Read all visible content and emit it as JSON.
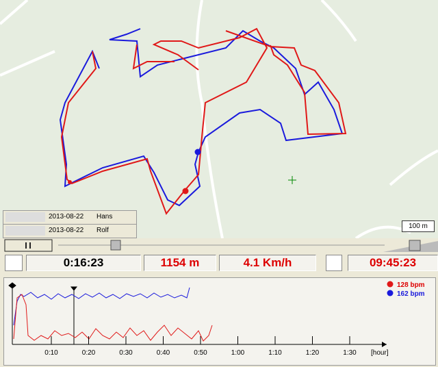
{
  "tracks": [
    {
      "date": "2013-08-22",
      "name": "Hans"
    },
    {
      "date": "2013-08-22",
      "name": "Rolf"
    }
  ],
  "scale_label": "100 m",
  "status": {
    "elapsed": "0:16:23",
    "distance": "1154 m",
    "speed": "4.1 Km/h",
    "clock": "09:45:23"
  },
  "hr_chart": {
    "legend": [
      "128 bpm",
      "162 bpm"
    ],
    "x_labels": [
      "0:10",
      "0:20",
      "0:30",
      "0:40",
      "0:50",
      "1:00",
      "1:10",
      "1:20",
      "1:30"
    ],
    "x_unit": "[hour]"
  }
}
